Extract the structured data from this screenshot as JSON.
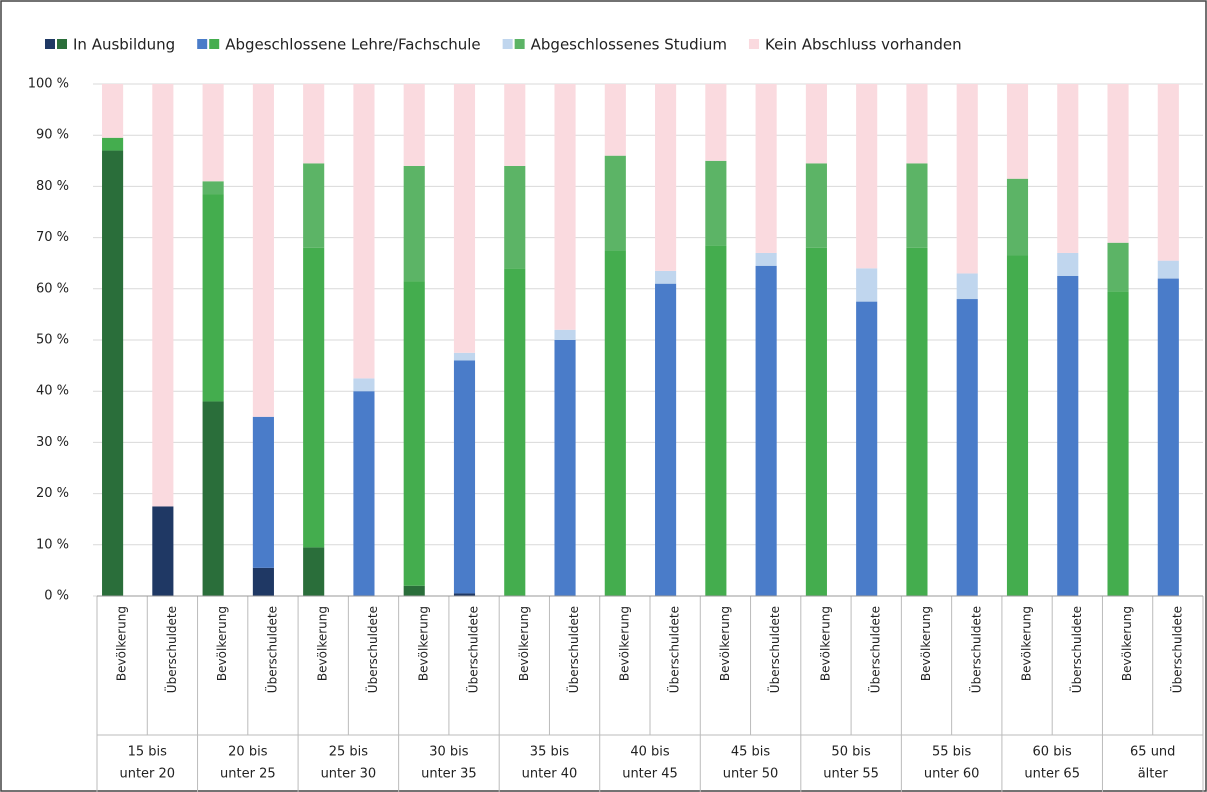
{
  "chart_data": {
    "type": "stacked-bar",
    "categories": [
      "Bevölkerung",
      "Überschuldete",
      "Bevölkerung",
      "Überschuldete",
      "Bevölkerung",
      "Überschuldete",
      "Bevölkerung",
      "Überschuldete",
      "Bevölkerung",
      "Überschuldete",
      "Bevölkerung",
      "Überschuldete",
      "Bevölkerung",
      "Überschuldete",
      "Bevölkerung",
      "Überschuldete",
      "Bevölkerung",
      "Überschuldete",
      "Bevölkerung",
      "Überschuldete",
      "Bevölkerung",
      "Überschuldete"
    ],
    "groups": [
      [
        "15 bis",
        "unter 20"
      ],
      [
        "20 bis",
        "unter 25"
      ],
      [
        "25 bis",
        "unter 30"
      ],
      [
        "30 bis",
        "unter 35"
      ],
      [
        "35 bis",
        "unter 40"
      ],
      [
        "40 bis",
        "unter 45"
      ],
      [
        "45 bis",
        "unter 50"
      ],
      [
        "50 bis",
        "unter 55"
      ],
      [
        "55 bis",
        "unter 60"
      ],
      [
        "60 bis",
        "unter 65"
      ],
      [
        "65 und",
        "älter"
      ]
    ],
    "series": [
      {
        "name": "In Ausbildung",
        "colors": [
          "#1f3864",
          "#2a6e3a"
        ],
        "values": [
          87,
          17.5,
          38,
          5.5,
          9.5,
          0,
          2,
          0.5,
          0,
          0,
          0,
          0,
          0,
          0,
          0,
          0,
          0,
          0,
          0,
          0,
          0,
          0
        ]
      },
      {
        "name": "Abgeschlossene Lehre/Fachschule",
        "colors": [
          "#4a7cc9",
          "#44ad4e"
        ],
        "values": [
          2.5,
          0,
          40.5,
          29.5,
          58.5,
          40,
          59.5,
          45.5,
          64,
          50,
          67.5,
          61,
          68.5,
          64.5,
          68,
          57.5,
          68,
          58,
          66.5,
          62.5,
          59.5,
          62
        ]
      },
      {
        "name": "Abgeschlossenes Studium",
        "colors": [
          "#c0d6ee",
          "#5cb466"
        ],
        "values": [
          0,
          0,
          2.5,
          0,
          16.5,
          2.5,
          22.5,
          1.5,
          20,
          2,
          18.5,
          2.5,
          16.5,
          2.5,
          16.5,
          6.5,
          16.5,
          5,
          15,
          4.5,
          9.5,
          3.5
        ]
      },
      {
        "name": "Kein Abschluss vorhanden",
        "colors": [
          "#fadadf"
        ],
        "values": [
          10.5,
          82.5,
          19,
          65,
          15.5,
          57.5,
          16,
          52.5,
          16,
          48,
          14,
          36.5,
          15,
          33,
          15.5,
          36,
          15.5,
          37,
          18.5,
          33,
          31,
          34.5
        ]
      }
    ],
    "ylim": [
      0,
      100
    ],
    "yticks": [
      {
        "value": 0,
        "label": "0 %"
      },
      {
        "value": 10,
        "label": "10 %"
      },
      {
        "value": 20,
        "label": "20 %"
      },
      {
        "value": 30,
        "label": "30 %"
      },
      {
        "value": 40,
        "label": "40 %"
      },
      {
        "value": 50,
        "label": "50 %"
      },
      {
        "value": 60,
        "label": "60 %"
      },
      {
        "value": 70,
        "label": "70 %"
      },
      {
        "value": 80,
        "label": "80 %"
      },
      {
        "value": 90,
        "label": "90 %"
      },
      {
        "value": 100,
        "label": "100 %"
      }
    ],
    "grid": true
  }
}
